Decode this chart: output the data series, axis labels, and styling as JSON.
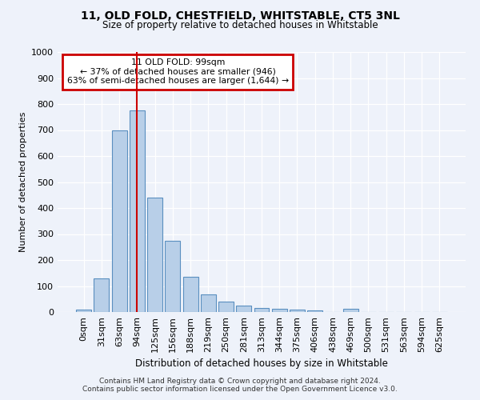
{
  "title1": "11, OLD FOLD, CHESTFIELD, WHITSTABLE, CT5 3NL",
  "title2": "Size of property relative to detached houses in Whitstable",
  "xlabel": "Distribution of detached houses by size in Whitstable",
  "ylabel": "Number of detached properties",
  "bar_color": "#b8cfe8",
  "bar_edge_color": "#5a8fc0",
  "categories": [
    "0sqm",
    "31sqm",
    "63sqm",
    "94sqm",
    "125sqm",
    "156sqm",
    "188sqm",
    "219sqm",
    "250sqm",
    "281sqm",
    "313sqm",
    "344sqm",
    "375sqm",
    "406sqm",
    "438sqm",
    "469sqm",
    "500sqm",
    "531sqm",
    "563sqm",
    "594sqm",
    "625sqm"
  ],
  "values": [
    8,
    128,
    700,
    775,
    440,
    275,
    135,
    68,
    40,
    25,
    15,
    12,
    10,
    5,
    0,
    12,
    0,
    0,
    0,
    0,
    0
  ],
  "vline_x": 3.0,
  "vline_color": "#cc0000",
  "annotation_text": "11 OLD FOLD: 99sqm\n← 37% of detached houses are smaller (946)\n63% of semi-detached houses are larger (1,644) →",
  "annotation_box_color": "#ffffff",
  "annotation_border_color": "#cc0000",
  "ylim": [
    0,
    1000
  ],
  "yticks": [
    0,
    100,
    200,
    300,
    400,
    500,
    600,
    700,
    800,
    900,
    1000
  ],
  "background_color": "#eef2fa",
  "footnote1": "Contains HM Land Registry data © Crown copyright and database right 2024.",
  "footnote2": "Contains public sector information licensed under the Open Government Licence v3.0."
}
